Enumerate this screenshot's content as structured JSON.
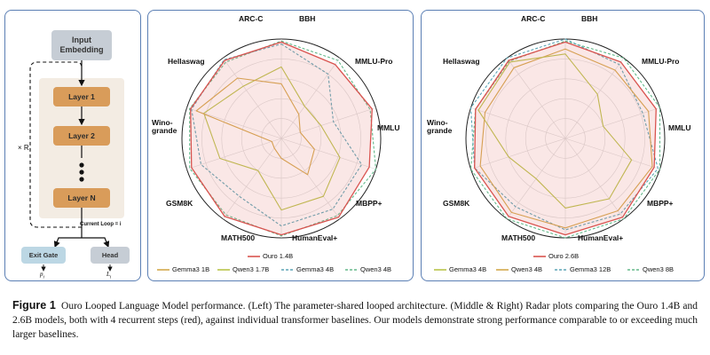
{
  "architecture": {
    "input": "Input\nEmbedding",
    "layers": [
      "Layer 1",
      "Layer 2",
      "Layer N"
    ],
    "loop_label": "× R",
    "current_loop": "Current Loop = i",
    "exit_gate": "Exit Gate",
    "head": "Head",
    "exit_out": "p",
    "exit_sub": "i",
    "head_out": "L",
    "head_sub": "i"
  },
  "radar_axes": [
    "ARC-C",
    "BBH",
    "MMLU-Pro",
    "MMLU",
    "MBPP+",
    "HumanEval+",
    "MATH500",
    "GSM8K",
    "Wino-\ngrande",
    "Hellaswag"
  ],
  "chart_data": [
    {
      "type": "radar",
      "axes": [
        "ARC-C",
        "BBH",
        "MMLU-Pro",
        "MMLU",
        "MBPP+",
        "HumanEval+",
        "MATH500",
        "GSM8K",
        "Winogrande",
        "Hellaswag"
      ],
      "series": [
        {
          "name": "Ouro 1.4B",
          "values": [
            0.97,
            0.92,
            0.96,
            0.93,
            0.98,
            0.97,
            0.97,
            0.95,
            0.96,
            0.97
          ]
        },
        {
          "name": "Gemma3 1B",
          "values": [
            0.55,
            0.3,
            0.2,
            0.35,
            0.45,
            0.2,
            0.12,
            0.1,
            0.9,
            0.75
          ]
        },
        {
          "name": "Qwen3 1.7B",
          "values": [
            0.72,
            0.4,
            0.42,
            0.62,
            0.72,
            0.72,
            0.4,
            0.65,
            0.82,
            0.65
          ]
        },
        {
          "name": "Gemma3 4B",
          "values": [
            0.95,
            0.8,
            0.55,
            0.85,
            0.88,
            0.88,
            0.72,
            0.85,
            0.95,
            0.98
          ]
        },
        {
          "name": "Qwen3 4B",
          "values": [
            0.98,
            0.97,
            0.94,
            1.0,
            0.96,
            0.98,
            0.95,
            0.97,
            0.97,
            0.95
          ]
        }
      ],
      "colors": {
        "Ouro 1.4B": "#d9534f",
        "Gemma3 1B": "#d4a84b",
        "Qwen3 1.7B": "#b9c44a",
        "Gemma3 4B": "#5aa4b5",
        "Qwen3 4B": "#63b88a"
      }
    },
    {
      "type": "radar",
      "axes": [
        "ARC-C",
        "BBH",
        "MMLU-Pro",
        "MMLU",
        "MBPP+",
        "HumanEval+",
        "MATH500",
        "GSM8K",
        "Winogrande",
        "Hellaswag"
      ],
      "series": [
        {
          "name": "Ouro 2.6B",
          "values": [
            0.97,
            0.95,
            0.96,
            0.94,
            0.98,
            0.97,
            0.97,
            0.96,
            0.95,
            0.97
          ]
        },
        {
          "name": "Gemma3 4B",
          "values": [
            0.85,
            0.55,
            0.4,
            0.7,
            0.75,
            0.7,
            0.5,
            0.6,
            0.92,
            0.95
          ]
        },
        {
          "name": "Qwen3 4B",
          "values": [
            0.9,
            0.85,
            0.88,
            0.92,
            0.9,
            0.9,
            0.92,
            0.9,
            0.85,
            0.88
          ]
        },
        {
          "name": "Gemma3 12B",
          "values": [
            1.0,
            0.92,
            0.82,
            0.98,
            0.94,
            0.92,
            0.85,
            0.96,
            1.0,
            1.0
          ]
        },
        {
          "name": "Qwen3 8B",
          "values": [
            0.98,
            1.0,
            1.0,
            1.0,
            1.0,
            1.0,
            1.0,
            1.0,
            0.95,
            0.96
          ]
        }
      ],
      "colors": {
        "Ouro 2.6B": "#d9534f",
        "Gemma3 4B": "#b9c44a",
        "Qwen3 4B": "#d4a84b",
        "Gemma3 12B": "#5aa4b5",
        "Qwen3 8B": "#63b88a"
      }
    }
  ],
  "legend_mid": [
    "Ouro 1.4B",
    "Gemma3 1B",
    "Qwen3 1.7B",
    "Gemma3 4B",
    "Qwen3 4B"
  ],
  "legend_right": [
    "Ouro 2.6B",
    "Gemma3 4B",
    "Qwen3 4B",
    "Gemma3 12B",
    "Qwen3 8B"
  ],
  "caption": {
    "label": "Figure 1",
    "text": "Ouro Looped Language Model performance. (Left) The parameter-shared looped architecture. (Middle & Right) Radar plots comparing the Ouro 1.4B and 2.6B models, both with 4 recurrent steps (red), against individual transformer baselines. Our models demonstrate strong performance comparable to or exceeding much larger baselines."
  }
}
